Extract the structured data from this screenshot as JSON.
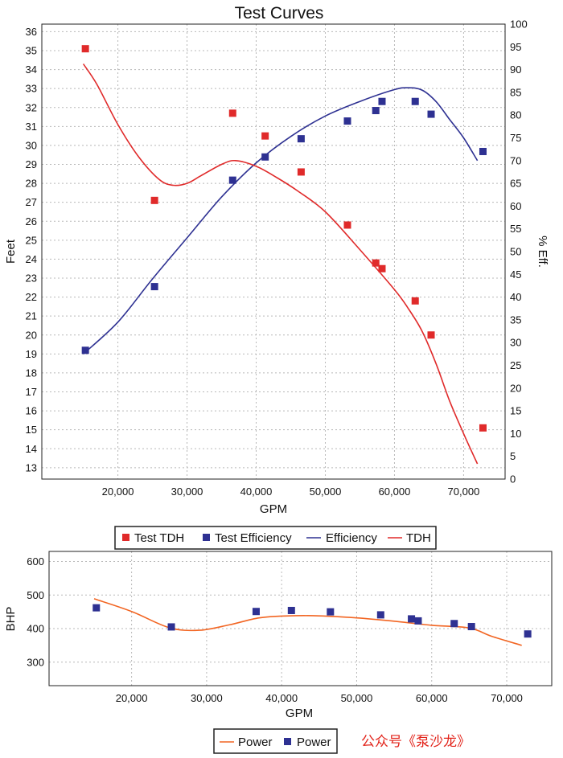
{
  "watermark": "公众号《泵沙龙》",
  "colors": {
    "test_tdh": "#e02a2a",
    "test_eff": "#2e3192",
    "efficiency": "#2e3192",
    "tdh": "#e02a2a",
    "power_line": "#f26522",
    "power_pts": "#2e3192",
    "grid": "#b8b8b8"
  },
  "chart_data": [
    {
      "type": "line",
      "title": "Test Curves",
      "xlabel": "GPM",
      "ylabel": "Feet",
      "y2label": "% Eff.",
      "xlim": [
        9000,
        76000
      ],
      "ylim": [
        12.4,
        36.4
      ],
      "y2lim": [
        0,
        100
      ],
      "x_ticks": [
        20000,
        30000,
        40000,
        50000,
        60000,
        70000
      ],
      "x_tick_labels": [
        "20,000",
        "30,000",
        "40,000",
        "50,000",
        "60,000",
        "70,000"
      ],
      "y_ticks": [
        13,
        14,
        15,
        16,
        17,
        18,
        19,
        20,
        21,
        22,
        23,
        24,
        25,
        26,
        27,
        28,
        29,
        30,
        31,
        32,
        33,
        34,
        35,
        36
      ],
      "y2_ticks": [
        5,
        10,
        15,
        20,
        25,
        30,
        35,
        40,
        45,
        50,
        55,
        60,
        65,
        70,
        75,
        80,
        85,
        90,
        95,
        100
      ],
      "grid": true,
      "legend_position": "bottom",
      "series": [
        {
          "name": "Test TDH",
          "kind": "points",
          "axis": "left",
          "color_key": "test_tdh",
          "x": [
            15300,
            25300,
            36600,
            41300,
            46500,
            53200,
            57300,
            58200,
            63000,
            65300,
            72800
          ],
          "y": [
            35.1,
            27.1,
            31.7,
            30.5,
            28.6,
            25.8,
            23.8,
            23.5,
            21.8,
            20.0,
            15.1
          ]
        },
        {
          "name": "Test Efficiency",
          "kind": "points",
          "axis": "right",
          "color_key": "test_eff",
          "x": [
            15300,
            25300,
            36600,
            41300,
            46500,
            53200,
            57300,
            58200,
            63000,
            65300,
            72800
          ],
          "y": [
            28.3,
            42.3,
            65.7,
            70.8,
            74.8,
            78.7,
            81.0,
            83.0,
            83.0,
            80.2,
            72.0
          ]
        },
        {
          "name": "Efficiency",
          "kind": "line",
          "axis": "right",
          "color_key": "efficiency",
          "x": [
            15000,
            20000,
            25000,
            30000,
            35000,
            40000,
            45000,
            50000,
            55000,
            60000,
            62000,
            64000,
            66000,
            68000,
            70000,
            72000
          ],
          "y": [
            27.5,
            34.5,
            44.0,
            53.0,
            62.0,
            69.5,
            75.3,
            79.8,
            83.0,
            85.6,
            86.0,
            85.5,
            83.0,
            79.0,
            75.0,
            70.0
          ]
        },
        {
          "name": "TDH",
          "kind": "line",
          "axis": "left",
          "color_key": "tdh",
          "x": [
            15000,
            17000,
            20000,
            23000,
            26000,
            28000,
            30000,
            32000,
            35000,
            37000,
            40000,
            43000,
            46000,
            50000,
            55000,
            60000,
            62000,
            64000,
            66000,
            68000,
            70000,
            72000
          ],
          "y": [
            34.3,
            33.2,
            31.1,
            29.4,
            28.2,
            27.9,
            28.0,
            28.4,
            29.0,
            29.2,
            28.9,
            28.3,
            27.6,
            26.5,
            24.5,
            22.4,
            21.4,
            20.2,
            18.5,
            16.5,
            14.8,
            13.2
          ]
        }
      ]
    },
    {
      "type": "line",
      "title": "",
      "xlabel": "GPM",
      "ylabel": "BHP",
      "xlim": [
        9000,
        76000
      ],
      "ylim": [
        230,
        630
      ],
      "x_ticks": [
        20000,
        30000,
        40000,
        50000,
        60000,
        70000
      ],
      "x_tick_labels": [
        "20,000",
        "30,000",
        "40,000",
        "50,000",
        "60,000",
        "70,000"
      ],
      "y_ticks": [
        300,
        400,
        500,
        600
      ],
      "grid": true,
      "legend_position": "bottom",
      "series": [
        {
          "name": "Power",
          "kind": "line",
          "color_key": "power_line",
          "x": [
            15000,
            20000,
            25000,
            29000,
            33000,
            37000,
            41000,
            45000,
            50000,
            55000,
            60000,
            65000,
            68000,
            72000
          ],
          "y": [
            489,
            451,
            403,
            395,
            411,
            432,
            438,
            438,
            432,
            422,
            410,
            402,
            377,
            350
          ]
        },
        {
          "name": "Power",
          "kind": "points",
          "color_key": "power_pts",
          "x": [
            15300,
            25300,
            36600,
            41300,
            46500,
            53200,
            57300,
            58200,
            63000,
            65300,
            72800
          ],
          "y": [
            462,
            405,
            451,
            454,
            450,
            441,
            429,
            423,
            415,
            406,
            384
          ]
        }
      ]
    }
  ]
}
